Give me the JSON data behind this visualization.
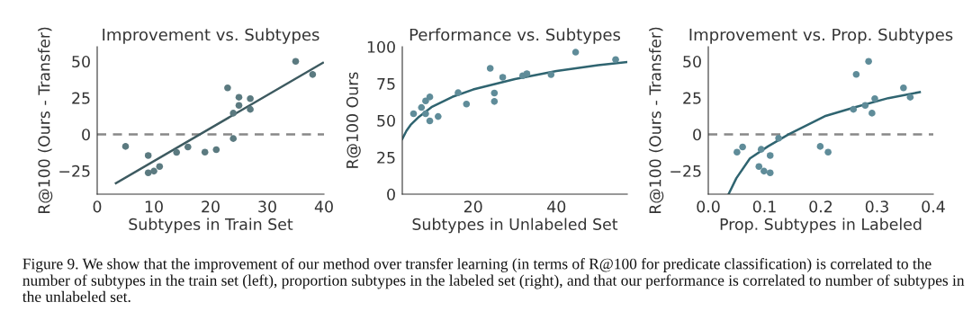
{
  "chart_data": [
    {
      "type": "scatter",
      "title": "Improvement vs. Subtypes",
      "xlabel": "Subtypes in Train Set",
      "ylabel": "R@100 (Ours - Transfer)",
      "xlim": [
        0,
        40
      ],
      "xticks": [
        0,
        10,
        20,
        30,
        40
      ],
      "ylim": [
        -41,
        60
      ],
      "yticks": [
        {
          "value": -25,
          "label": "−25"
        },
        0,
        25,
        50
      ],
      "grid": false,
      "ref_lines": [
        {
          "axis": "y",
          "value": 0,
          "color": "#888888",
          "line_style": "dashed"
        }
      ],
      "series": [
        {
          "marker": "circle",
          "color": "#5b7a80",
          "x": [
            5,
            9,
            9,
            10,
            11,
            14,
            16,
            19,
            21,
            23,
            24,
            24,
            25,
            25,
            27,
            27,
            35,
            38
          ],
          "values": [
            -8.3,
            -14.5,
            -26.4,
            -25.2,
            -22.1,
            -12.4,
            -8.7,
            -12.2,
            -10.5,
            31.8,
            14.5,
            -2.9,
            25.4,
            19.8,
            24.4,
            17.1,
            50,
            41
          ]
        },
        {
          "type": "line",
          "color": "#3d5a60",
          "x": [
            3.3,
            39.8
          ],
          "values": [
            -33.5,
            49
          ]
        }
      ],
      "annotations": [
        "Figure 9. We show that the improvement of our method over transfer learning (in terms of R@100 for predicate classification) is correlated to the number of subtypes in the train set (left), proportion subtypes in the labeled set (right), and that our performance is correlated to number of subtypes in the unlabeled set."
      ]
    },
    {
      "type": "scatter",
      "title": "Performance vs. Subtypes",
      "xlabel": "Subtypes in Unlabeled Set",
      "ylabel": "R@100 Ours",
      "xlim": [
        3,
        57
      ],
      "xticks": [
        20,
        40
      ],
      "ylim": [
        0,
        100
      ],
      "yticks": [
        0,
        25,
        50,
        75,
        100
      ],
      "grid": false,
      "series": [
        {
          "marker": "circle",
          "color": "#5f8c99",
          "x": [
            5.7,
            7.6,
            8.6,
            8.6,
            9.6,
            9.6,
            11.6,
            16.4,
            18.4,
            24.1,
            25.1,
            25.1,
            27.1,
            31.9,
            32.9,
            38.7,
            44.6,
            54.2
          ],
          "values": [
            54.6,
            58.8,
            63.3,
            54.6,
            65.9,
            49.7,
            52.7,
            68.8,
            61.1,
            85.4,
            68.6,
            62.9,
            79.3,
            80.3,
            81.7,
            81.1,
            96.3,
            91.3
          ]
        },
        {
          "type": "line",
          "color": "#2f6470",
          "x": [
            3,
            4,
            5,
            7,
            10,
            15,
            20,
            30,
            40,
            50,
            57
          ],
          "values": [
            37.5,
            43,
            47,
            52.5,
            59,
            66,
            71,
            78,
            83.5,
            87.5,
            89.7
          ]
        }
      ]
    },
    {
      "type": "scatter",
      "title": "Improvement vs. Prop. Subtypes",
      "xlabel": "Prop. Subtypes in Labeled",
      "ylabel": "R@100 (Ours - Transfer)",
      "xlim": [
        0,
        0.4
      ],
      "xticks": [
        {
          "value": 0,
          "label": "0.0"
        },
        0.1,
        0.2,
        0.3,
        0.4
      ],
      "ylim": [
        -41,
        60
      ],
      "yticks": [
        {
          "value": -25,
          "label": "−25"
        },
        0,
        25,
        50
      ],
      "grid": false,
      "ref_lines": [
        {
          "axis": "y",
          "value": 0,
          "color": "#888888",
          "line_style": "dashed"
        }
      ],
      "series": [
        {
          "marker": "circle",
          "color": "#5f8c99",
          "x": [
            0.051,
            0.061,
            0.09,
            0.094,
            0.099,
            0.11,
            0.11,
            0.125,
            0.199,
            0.213,
            0.258,
            0.263,
            0.279,
            0.285,
            0.291,
            0.296,
            0.347,
            0.359
          ],
          "values": [
            -12.2,
            -8.7,
            -22.1,
            -10.3,
            -25.2,
            -26.4,
            -14.5,
            -2.7,
            -8.3,
            -12.2,
            17.1,
            41.1,
            19.8,
            50,
            14.5,
            24.4,
            31.8,
            25.4
          ]
        },
        {
          "type": "line",
          "color": "#2f6470",
          "x": [
            0.036,
            0.05,
            0.074,
            0.106,
            0.143,
            0.207,
            0.261,
            0.32,
            0.376
          ],
          "values": [
            -41,
            -30,
            -16.5,
            -8.3,
            0,
            12.4,
            18.6,
            24.8,
            28.9
          ]
        }
      ]
    }
  ]
}
